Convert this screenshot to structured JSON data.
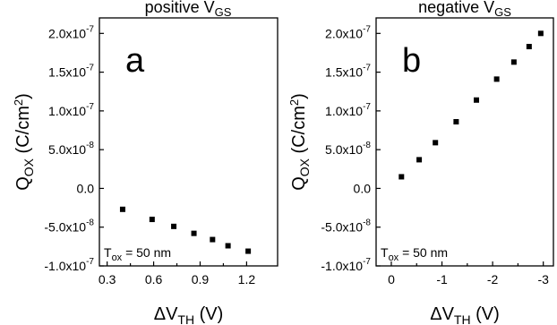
{
  "chart_data": [
    {
      "type": "scatter",
      "title_main": "positive V",
      "title_sub": "GS",
      "panel_label": "a",
      "annotation": {
        "main": "T",
        "sub": "ox",
        "rest": " = 50 nm"
      },
      "xlabel": {
        "pre": "ΔV",
        "sub": "TH",
        "post": " (V)"
      },
      "ylabel": {
        "pre": "Q",
        "sub": "OX",
        "mid": " (C/cm",
        "sup": "2",
        "post": ")"
      },
      "xlim": [
        0.25,
        1.4
      ],
      "ylim": [
        -1e-07,
        2.2e-07
      ],
      "xticks": [
        {
          "v": 0.3,
          "label": "0.3"
        },
        {
          "v": 0.6,
          "label": "0.6"
        },
        {
          "v": 0.9,
          "label": "0.9"
        },
        {
          "v": 1.2,
          "label": "1.2"
        }
      ],
      "yticks": [
        {
          "v": -1e-07,
          "base": "-1.0x10",
          "exp": "-7"
        },
        {
          "v": -5e-08,
          "base": "-5.0x10",
          "exp": "-8"
        },
        {
          "v": 0,
          "base": "0.0",
          "exp": ""
        },
        {
          "v": 5e-08,
          "base": "5.0x10",
          "exp": "-8"
        },
        {
          "v": 1e-07,
          "base": "1.0x10",
          "exp": "-7"
        },
        {
          "v": 1.5e-07,
          "base": "1.5x10",
          "exp": "-7"
        },
        {
          "v": 2e-07,
          "base": "2.0x10",
          "exp": "-7"
        }
      ],
      "points": [
        {
          "x": 0.4,
          "y": -2.7e-08
        },
        {
          "x": 0.59,
          "y": -4e-08
        },
        {
          "x": 0.73,
          "y": -4.9e-08
        },
        {
          "x": 0.86,
          "y": -5.8e-08
        },
        {
          "x": 0.98,
          "y": -6.6e-08
        },
        {
          "x": 1.08,
          "y": -7.4e-08
        },
        {
          "x": 1.21,
          "y": -8.1e-08
        }
      ]
    },
    {
      "type": "scatter",
      "title_main": "negative V",
      "title_sub": "GS",
      "panel_label": "b",
      "annotation": {
        "main": "T",
        "sub": "ox",
        "rest": " = 50 nm"
      },
      "xlabel": {
        "pre": "ΔV",
        "sub": "TH",
        "post": " (V)"
      },
      "ylabel": {
        "pre": "Q",
        "sub": "OX",
        "mid": " (C/cm",
        "sup": "2",
        "post": ")"
      },
      "xlim": [
        0.3,
        -3.2
      ],
      "ylim": [
        -1e-07,
        2.2e-07
      ],
      "xticks": [
        {
          "v": 0,
          "label": "0"
        },
        {
          "v": -1,
          "label": "-1"
        },
        {
          "v": -2,
          "label": "-2"
        },
        {
          "v": -3,
          "label": "-3"
        }
      ],
      "yticks": [
        {
          "v": -1e-07,
          "base": "-1.0x10",
          "exp": "-7"
        },
        {
          "v": -5e-08,
          "base": "-5.0x10",
          "exp": "-8"
        },
        {
          "v": 0,
          "base": "0.0",
          "exp": ""
        },
        {
          "v": 5e-08,
          "base": "5.0x10",
          "exp": "-8"
        },
        {
          "v": 1e-07,
          "base": "1.0x10",
          "exp": "-7"
        },
        {
          "v": 1.5e-07,
          "base": "1.5x10",
          "exp": "-7"
        },
        {
          "v": 2e-07,
          "base": "2.0x10",
          "exp": "-7"
        }
      ],
      "points": [
        {
          "x": -0.2,
          "y": 1.5e-08
        },
        {
          "x": -0.55,
          "y": 3.7e-08
        },
        {
          "x": -0.87,
          "y": 5.9e-08
        },
        {
          "x": -1.28,
          "y": 8.6e-08
        },
        {
          "x": -1.68,
          "y": 1.14e-07
        },
        {
          "x": -2.08,
          "y": 1.41e-07
        },
        {
          "x": -2.42,
          "y": 1.63e-07
        },
        {
          "x": -2.72,
          "y": 1.83e-07
        },
        {
          "x": -2.95,
          "y": 2e-07
        }
      ]
    }
  ]
}
